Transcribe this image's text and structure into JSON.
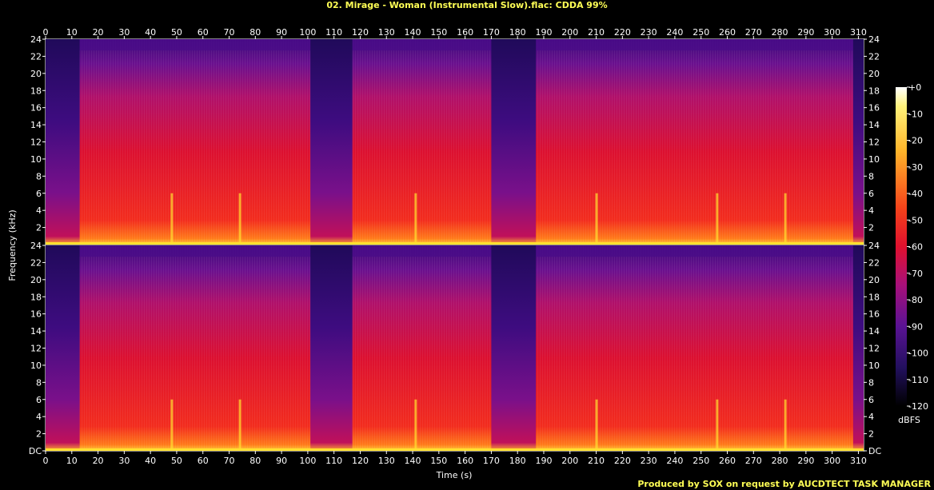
{
  "chart_data": {
    "type": "heatmap",
    "title": "02. Mirage - Woman (Instrumental Slow).flac: CDDA 99%",
    "xlabel": "Time (s)",
    "ylabel": "Frequency (kHz)",
    "footer": "Produced by SOX on request by AUCDTECT TASK MANAGER",
    "xlim": [
      0,
      312
    ],
    "ylim": [
      0,
      24
    ],
    "x_ticks": [
      0,
      10,
      20,
      30,
      40,
      50,
      60,
      70,
      80,
      90,
      100,
      110,
      120,
      130,
      140,
      150,
      160,
      170,
      180,
      190,
      200,
      210,
      220,
      230,
      240,
      250,
      260,
      270,
      280,
      290,
      300,
      310
    ],
    "y_ticks_top": [
      "24",
      "22",
      "20",
      "18",
      "16",
      "14",
      "12",
      "10",
      "8",
      "6",
      "4",
      "2"
    ],
    "y_ticks_bottom": [
      "24",
      "22",
      "20",
      "18",
      "16",
      "14",
      "12",
      "10",
      "8",
      "6",
      "4",
      "2",
      "DC"
    ],
    "channels": 2,
    "colorbar": {
      "unit": "dBFS",
      "ticks": [
        "+0",
        "-10",
        "-20",
        "-30",
        "-40",
        "-50",
        "-60",
        "-70",
        "-80",
        "-90",
        "-100",
        "-110",
        "-120"
      ],
      "range": [
        -120,
        0
      ]
    },
    "quiet_segments": [
      [
        0,
        13
      ],
      [
        101,
        117
      ],
      [
        170,
        187
      ],
      [
        308,
        312
      ]
    ],
    "bright_transients": [
      48,
      74,
      141,
      210,
      256,
      282
    ],
    "colors": {
      "title": "#ffff55",
      "footer": "#ffff55",
      "loud": "#ffe030",
      "mid": "#e8102a",
      "quiet": "#5a1090",
      "silence": "#1a0848"
    }
  }
}
